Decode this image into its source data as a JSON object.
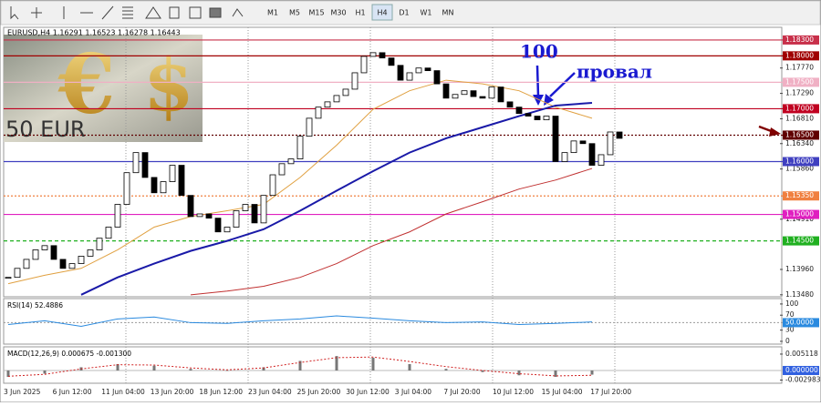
{
  "toolbar": {
    "timeframes": [
      "M1",
      "M5",
      "M15",
      "M30",
      "H1",
      "H4",
      "D1",
      "W1",
      "MN"
    ],
    "active_index": 5
  },
  "chart": {
    "header": "EURUSD,H4  1.16291 1.16523 1.16278 1.16443",
    "logo": {
      "euro": "€",
      "dollar": "$",
      "note": "50 EUR"
    },
    "ylim": [
      1.1346,
      1.1854
    ],
    "yticks": [
      {
        "value": 1.1777,
        "label": "1.17770"
      },
      {
        "value": 1.1729,
        "label": "1.17290"
      },
      {
        "value": 1.1681,
        "label": "1.16810"
      },
      {
        "value": 1.1634,
        "label": "1.16340"
      },
      {
        "value": 1.1586,
        "label": "1.15860"
      },
      {
        "value": 1.1491,
        "label": "1.14910"
      },
      {
        "value": 1.1396,
        "label": "1.13960"
      },
      {
        "value": 1.1348,
        "label": "1.13480"
      }
    ],
    "closes": [
      1.1381,
      1.1398,
      1.1415,
      1.1433,
      1.1441,
      1.1415,
      1.1398,
      1.1407,
      1.1421,
      1.1433,
      1.1455,
      1.1476,
      1.1519,
      1.1579,
      1.1617,
      1.157,
      1.1541,
      1.1562,
      1.1593,
      1.1536,
      1.1496,
      1.1501,
      1.1493,
      1.1467,
      1.1476,
      1.1507,
      1.1519,
      1.1484,
      1.1536,
      1.1575,
      1.1596,
      1.1605,
      1.1648,
      1.1682,
      1.1703,
      1.1713,
      1.1725,
      1.1737,
      1.1768,
      1.1799,
      1.1806,
      1.1796,
      1.1782,
      1.1754,
      1.1768,
      1.1777,
      1.1772,
      1.1747,
      1.172,
      1.1727,
      1.1734,
      1.1723,
      1.172,
      1.1741,
      1.1713,
      1.1703,
      1.1691,
      1.1686,
      1.1679,
      1.1686,
      1.16,
      1.1617,
      1.1639,
      1.1634,
      1.1593,
      1.1613,
      1.1656,
      1.1644
    ],
    "ma": [
      {
        "color": "#e0a040",
        "values": [
          1.1369,
          1.1385,
          1.1398,
          1.1433,
          1.1476,
          1.1496,
          1.1507,
          1.1519,
          1.157,
          1.1631,
          1.1699,
          1.1734,
          1.1754,
          1.1747,
          1.1734,
          1.1703,
          1.1682
        ]
      },
      {
        "color": "#1a1aa8",
        "values": [
          null,
          null,
          1.1348,
          1.1381,
          1.1407,
          1.1431,
          1.145,
          1.1472,
          1.1507,
          1.1545,
          1.1582,
          1.1617,
          1.1644,
          1.1665,
          1.1686,
          1.1706,
          1.1711
        ]
      },
      {
        "color": "#c03030",
        "values": [
          null,
          null,
          null,
          null,
          null,
          1.1348,
          1.1355,
          1.1364,
          1.1381,
          1.1407,
          1.1441,
          1.1467,
          1.1501,
          1.1524,
          1.1548,
          1.1565,
          1.1587
        ]
      }
    ],
    "levels": [
      {
        "value": 1.183,
        "label": "1.18300",
        "color": "#c8304a",
        "dash": ""
      },
      {
        "value": 1.18,
        "label": "1.18000",
        "color": "#a00000",
        "dash": ""
      },
      {
        "value": 1.175,
        "label": "1.17500",
        "color": "#f0b0c4",
        "dash": ""
      },
      {
        "value": 1.17,
        "label": "1.17000",
        "color": "#c00020",
        "dash": ""
      },
      {
        "value": 1.165,
        "label": "1.16500",
        "color": "#600000",
        "dash": "2,2"
      },
      {
        "value": 1.16,
        "label": "1.16000",
        "color": "#4040c0",
        "dash": ""
      },
      {
        "value": 1.1535,
        "label": "1.15350",
        "color": "#f08040",
        "dash": "2,2"
      },
      {
        "value": 1.15,
        "label": "1.15000",
        "color": "#e020c0",
        "dash": ""
      },
      {
        "value": 1.145,
        "label": "1.14500",
        "color": "#20b020",
        "dash": "4,3"
      }
    ],
    "time_labels": [
      "3 Jun 2025",
      "6 Jun 12:00",
      "11 Jun 04:00",
      "13 Jun 20:00",
      "18 Jun 12:00",
      "23 Jun 04:00",
      "25 Jun 20:00",
      "30 Jun 12:00",
      "3 Jul 04:00",
      "7 Jul 20:00",
      "10 Jul 12:00",
      "15 Jul 04:00",
      "17 Jul 20:00"
    ],
    "annotations": [
      {
        "text": "100",
        "color": "#1a1ad0"
      },
      {
        "text": "провал",
        "color": "#1a1ad0"
      }
    ]
  },
  "rsi": {
    "label": "RSI(14) 52.4886",
    "ylim": [
      -5,
      112
    ],
    "yticks": [
      100,
      70,
      30,
      0
    ],
    "level": {
      "value": 50,
      "label": "50.0000"
    },
    "color": "#2a8adf",
    "values": [
      45,
      55,
      40,
      60,
      65,
      50,
      48,
      55,
      60,
      68,
      62,
      55,
      50,
      52,
      45,
      48,
      52
    ]
  },
  "macd": {
    "label": "MACD(12,26,9) 0.000675 -0.001300",
    "ylim": [
      -0.0037,
      0.0071
    ],
    "yticks": [
      0.005118,
      -0.002983
    ],
    "level": {
      "value": 0,
      "label": "0.000000"
    },
    "histogram": [
      -0.002,
      -0.001,
      0.001,
      0.002,
      0.0015,
      0.0005,
      0,
      0.001,
      0.003,
      0.0045,
      0.004,
      0.002,
      0.0005,
      -0.0005,
      -0.0015,
      -0.002,
      -0.0013
    ],
    "signal": [
      -0.0018,
      -0.0012,
      0.0005,
      0.0018,
      0.0017,
      0.0008,
      0.0002,
      0.0008,
      0.0025,
      0.004,
      0.0042,
      0.0028,
      0.0012,
      0,
      -0.001,
      -0.0017,
      -0.0015
    ]
  }
}
